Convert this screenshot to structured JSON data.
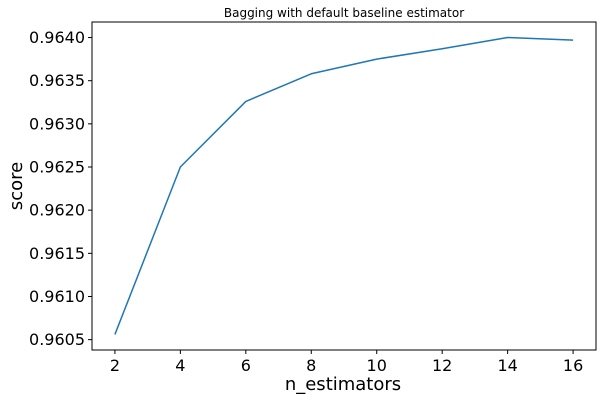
{
  "chart_data": {
    "type": "line",
    "title": "Bagging with default baseline estimator",
    "xlabel": "n_estimators",
    "ylabel": "score",
    "xlim": [
      1.3,
      16.7
    ],
    "ylim": [
      0.96038,
      0.96418
    ],
    "x_ticks": [
      2,
      4,
      6,
      8,
      10,
      12,
      14,
      16
    ],
    "x_tick_labels": [
      "2",
      "4",
      "6",
      "8",
      "10",
      "12",
      "14",
      "16"
    ],
    "y_ticks": [
      0.9605,
      0.961,
      0.9615,
      0.962,
      0.9625,
      0.963,
      0.9635,
      0.964
    ],
    "y_tick_labels": [
      "0.9605",
      "0.9610",
      "0.9615",
      "0.9620",
      "0.9625",
      "0.9630",
      "0.9635",
      "0.9640"
    ],
    "grid": false,
    "series": [
      {
        "x": [
          2,
          4,
          6,
          8,
          10,
          12,
          14,
          16
        ],
        "y": [
          0.96056,
          0.9625,
          0.96326,
          0.96358,
          0.96375,
          0.96387,
          0.964,
          0.96397
        ],
        "color": "#1f77b4"
      }
    ]
  }
}
